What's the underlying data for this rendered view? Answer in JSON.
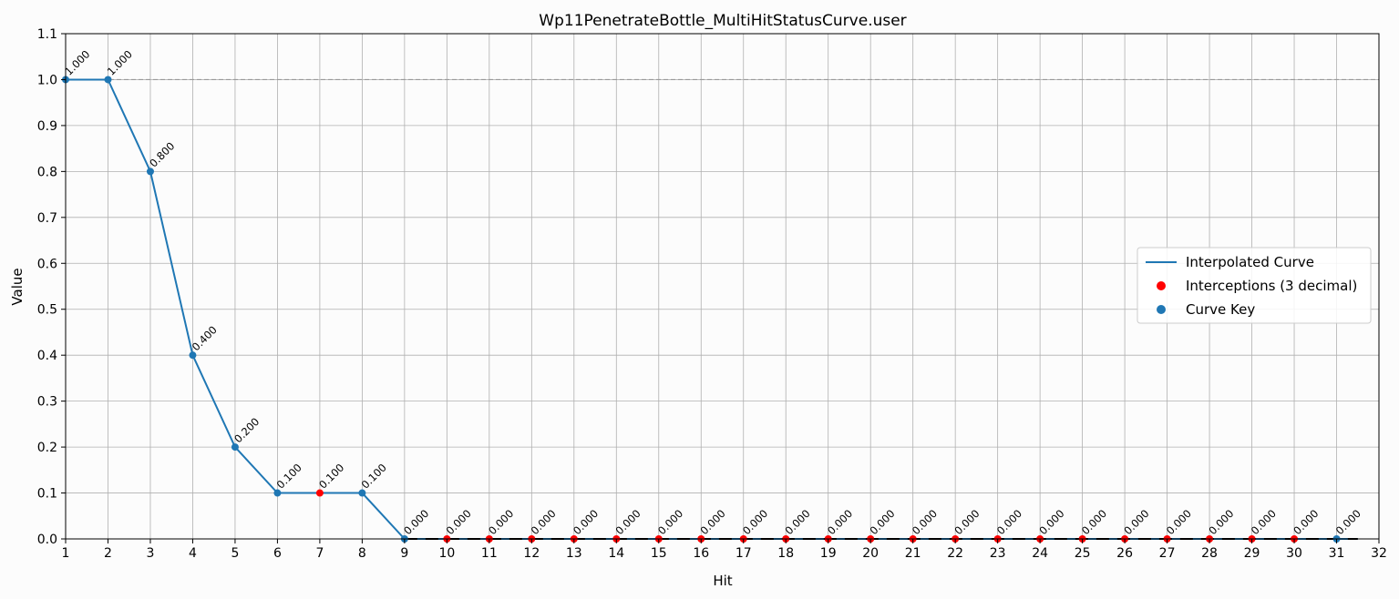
{
  "chart_data": {
    "type": "line",
    "title": "Wp11PenetrateBottle_MultiHitStatusCurve.user",
    "xlabel": "Hit",
    "ylabel": "Value",
    "xlim": [
      1,
      32
    ],
    "ylim": [
      0.0,
      1.1
    ],
    "x_ticks": [
      "1",
      "2",
      "3",
      "4",
      "5",
      "6",
      "7",
      "8",
      "9",
      "10",
      "11",
      "12",
      "13",
      "14",
      "15",
      "16",
      "17",
      "18",
      "19",
      "20",
      "21",
      "22",
      "23",
      "24",
      "25",
      "26",
      "27",
      "28",
      "29",
      "30",
      "31",
      "32"
    ],
    "y_ticks": [
      "0.0",
      "0.1",
      "0.2",
      "0.3",
      "0.4",
      "0.5",
      "0.6",
      "0.7",
      "0.8",
      "0.9",
      "1.0",
      "1.1"
    ],
    "grid": true,
    "reference_line": {
      "y": 1.0,
      "style": "dashed",
      "color": "#999999"
    },
    "legend": {
      "placement": "center-right",
      "entries": [
        {
          "label": "Interpolated Curve",
          "marker": "line",
          "color": "#1f77b4"
        },
        {
          "label": "Interceptions (3 decimal)",
          "marker": "dot",
          "color": "#ff0000"
        },
        {
          "label": "Curve Key",
          "marker": "dot",
          "color": "#1f77b4"
        }
      ]
    },
    "series": [
      {
        "name": "Interpolated Curve",
        "color": "#1f77b4",
        "x": [
          1,
          2,
          3,
          4,
          5,
          6,
          7,
          8,
          9,
          31.5
        ],
        "y": [
          1.0,
          1.0,
          0.8,
          0.4,
          0.2,
          0.1,
          0.1,
          0.1,
          0.0,
          0.0
        ]
      },
      {
        "name": "Interceptions (3 decimal)",
        "color": "#ff0000",
        "x": [
          7,
          10,
          11,
          12,
          13,
          14,
          15,
          16,
          17,
          18,
          19,
          20,
          21,
          22,
          23,
          24,
          25,
          26,
          27,
          28,
          29,
          30
        ],
        "y": [
          0.1,
          0,
          0,
          0,
          0,
          0,
          0,
          0,
          0,
          0,
          0,
          0,
          0,
          0,
          0,
          0,
          0,
          0,
          0,
          0,
          0,
          0
        ]
      },
      {
        "name": "Curve Key",
        "color": "#1f77b4",
        "x": [
          1,
          2,
          3,
          4,
          5,
          6,
          8,
          9,
          31
        ],
        "y": [
          1.0,
          1.0,
          0.8,
          0.4,
          0.2,
          0.1,
          0.1,
          0.0,
          0.0
        ]
      }
    ],
    "annotations": [
      {
        "x": 1,
        "y": 1.0,
        "text": "1.000"
      },
      {
        "x": 2,
        "y": 1.0,
        "text": "1.000"
      },
      {
        "x": 3,
        "y": 0.8,
        "text": "0.800"
      },
      {
        "x": 4,
        "y": 0.4,
        "text": "0.400"
      },
      {
        "x": 5,
        "y": 0.2,
        "text": "0.200"
      },
      {
        "x": 6,
        "y": 0.1,
        "text": "0.100"
      },
      {
        "x": 7,
        "y": 0.1,
        "text": "0.100"
      },
      {
        "x": 8,
        "y": 0.1,
        "text": "0.100"
      },
      {
        "x": 9,
        "y": 0.0,
        "text": "0.000"
      },
      {
        "x": 10,
        "y": 0.0,
        "text": "0.000"
      },
      {
        "x": 11,
        "y": 0.0,
        "text": "0.000"
      },
      {
        "x": 12,
        "y": 0.0,
        "text": "0.000"
      },
      {
        "x": 13,
        "y": 0.0,
        "text": "0.000"
      },
      {
        "x": 14,
        "y": 0.0,
        "text": "0.000"
      },
      {
        "x": 15,
        "y": 0.0,
        "text": "0.000"
      },
      {
        "x": 16,
        "y": 0.0,
        "text": "0.000"
      },
      {
        "x": 17,
        "y": 0.0,
        "text": "0.000"
      },
      {
        "x": 18,
        "y": 0.0,
        "text": "0.000"
      },
      {
        "x": 19,
        "y": 0.0,
        "text": "0.000"
      },
      {
        "x": 20,
        "y": 0.0,
        "text": "0.000"
      },
      {
        "x": 21,
        "y": 0.0,
        "text": "0.000"
      },
      {
        "x": 22,
        "y": 0.0,
        "text": "0.000"
      },
      {
        "x": 23,
        "y": 0.0,
        "text": "0.000"
      },
      {
        "x": 24,
        "y": 0.0,
        "text": "0.000"
      },
      {
        "x": 25,
        "y": 0.0,
        "text": "0.000"
      },
      {
        "x": 26,
        "y": 0.0,
        "text": "0.000"
      },
      {
        "x": 27,
        "y": 0.0,
        "text": "0.000"
      },
      {
        "x": 28,
        "y": 0.0,
        "text": "0.000"
      },
      {
        "x": 29,
        "y": 0.0,
        "text": "0.000"
      },
      {
        "x": 30,
        "y": 0.0,
        "text": "0.000"
      },
      {
        "x": 31,
        "y": 0.0,
        "text": "0.000"
      }
    ]
  }
}
